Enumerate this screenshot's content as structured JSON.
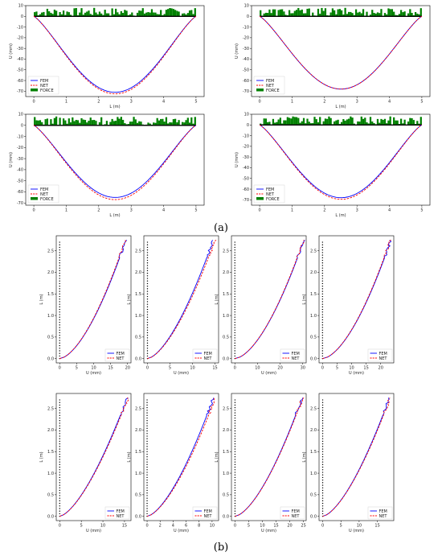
{
  "panel_labels": [
    "(a)",
    "(b)"
  ],
  "colors": {
    "fem": "#0000ff",
    "net": "#ff0000",
    "force": "#008000",
    "support": "#000000"
  },
  "chart_data": [
    {
      "type": "line",
      "group": "a",
      "xlabel": "L (m)",
      "ylabel": "U (mm)",
      "xlim": [
        -0.25,
        5.25
      ],
      "ylim": [
        -75,
        10
      ],
      "xticks": [
        0,
        1,
        2,
        3,
        4,
        5
      ],
      "yticks": [
        10,
        0,
        -10,
        -20,
        -30,
        -40,
        -50,
        -60,
        -70
      ],
      "legend": [
        "FEM",
        "NET",
        "FORCE"
      ],
      "legend_position": "lower-left",
      "fem_min": -71,
      "net_min": -72.5,
      "force_range": [
        0,
        8
      ]
    },
    {
      "type": "line",
      "group": "a",
      "xlabel": "L (m)",
      "ylabel": "U (mm)",
      "xlim": [
        -0.25,
        5.25
      ],
      "ylim": [
        -75,
        10
      ],
      "xticks": [
        0,
        1,
        2,
        3,
        4,
        5
      ],
      "yticks": [
        10,
        0,
        -10,
        -20,
        -30,
        -40,
        -50,
        -60,
        -70
      ],
      "legend": [
        "FEM",
        "NET",
        "FORCE"
      ],
      "legend_position": "lower-left",
      "fem_min": -68,
      "net_min": -68,
      "force_range": [
        0,
        8
      ]
    },
    {
      "type": "line",
      "group": "a",
      "xlabel": "L (m)",
      "ylabel": "U (mm)",
      "xlim": [
        -0.25,
        5.25
      ],
      "ylim": [
        -72,
        10
      ],
      "xticks": [
        0,
        1,
        2,
        3,
        4,
        5
      ],
      "yticks": [
        10,
        0,
        -10,
        -20,
        -30,
        -40,
        -50,
        -60,
        -70
      ],
      "legend": [
        "FEM",
        "NET",
        "FORCE"
      ],
      "legend_position": "lower-left",
      "fem_min": -65,
      "net_min": -67,
      "force_range": [
        0,
        8
      ]
    },
    {
      "type": "line",
      "group": "a",
      "xlabel": "L (m)",
      "ylabel": "U (mm)",
      "xlim": [
        -0.25,
        5.25
      ],
      "ylim": [
        -75,
        10
      ],
      "xticks": [
        0,
        1,
        2,
        3,
        4,
        5
      ],
      "yticks": [
        10,
        0,
        -10,
        -20,
        -30,
        -40,
        -50,
        -60,
        -70
      ],
      "legend": [
        "FEM",
        "NET",
        "FORCE"
      ],
      "legend_position": "lower-left",
      "fem_min": -68,
      "net_min": -69.5,
      "force_range": [
        0,
        8
      ]
    },
    {
      "type": "line",
      "group": "b",
      "xlabel": "U (mm)",
      "ylabel": "L (m)",
      "xlim": [
        -1,
        21
      ],
      "ylim": [
        -0.1,
        2.85
      ],
      "xticks": [
        0,
        5,
        10,
        15,
        20
      ],
      "yticks": [
        0.0,
        0.5,
        1.0,
        1.5,
        2.0,
        2.5
      ],
      "legend": [
        "FEM",
        "NET"
      ],
      "legend_position": "lower-right",
      "tip_fem": 19.5,
      "tip_net": 19.3,
      "curve_shape": 0.55
    },
    {
      "type": "line",
      "group": "b",
      "xlabel": "U (mm)",
      "ylabel": "L (m)",
      "xlim": [
        -0.8,
        15.8
      ],
      "ylim": [
        -0.1,
        2.85
      ],
      "xticks": [
        0,
        5,
        10,
        15
      ],
      "yticks": [
        0.0,
        0.5,
        1.0,
        1.5,
        2.0,
        2.5
      ],
      "legend": [
        "FEM",
        "NET"
      ],
      "legend_position": "lower-right",
      "tip_fem": 14.6,
      "tip_net": 15.0,
      "curve_shape": 0.45
    },
    {
      "type": "line",
      "group": "b",
      "xlabel": "U (mm)",
      "ylabel": "L (m)",
      "xlim": [
        -1.5,
        31.5
      ],
      "ylim": [
        -0.1,
        2.85
      ],
      "xticks": [
        0,
        10,
        20,
        30
      ],
      "yticks": [
        0.0,
        0.5,
        1.0,
        1.5,
        2.0,
        2.5
      ],
      "legend": [
        "FEM",
        "NET"
      ],
      "legend_position": "lower-right",
      "tip_fem": 30.5,
      "tip_net": 30.3,
      "curve_shape": 0.6
    },
    {
      "type": "line",
      "group": "b",
      "xlabel": "U (mm)",
      "ylabel": "L (m)",
      "xlim": [
        -1.2,
        24.5
      ],
      "ylim": [
        -0.1,
        2.85
      ],
      "xticks": [
        0,
        5,
        10,
        15,
        20
      ],
      "yticks": [
        0.0,
        0.5,
        1.0,
        1.5,
        2.0,
        2.5
      ],
      "legend": [
        "FEM",
        "NET"
      ],
      "legend_position": "lower-right",
      "tip_fem": 23.5,
      "tip_net": 23.3,
      "curve_shape": 0.6
    },
    {
      "type": "line",
      "group": "b",
      "xlabel": "U (mm)",
      "ylabel": "L (m)",
      "xlim": [
        -0.8,
        16.5
      ],
      "ylim": [
        -0.1,
        2.85
      ],
      "xticks": [
        0,
        5,
        10,
        15
      ],
      "yticks": [
        0.0,
        0.5,
        1.0,
        1.5,
        2.0,
        2.5
      ],
      "legend": [
        "FEM",
        "NET"
      ],
      "legend_position": "lower-right",
      "tip_fem": 15.6,
      "tip_net": 15.8,
      "curve_shape": 0.35
    },
    {
      "type": "line",
      "group": "b",
      "xlabel": "U (mm)",
      "ylabel": "L (m)",
      "xlim": [
        -0.5,
        11
      ],
      "ylim": [
        -0.1,
        2.85
      ],
      "xticks": [
        0,
        2,
        4,
        6,
        8,
        10
      ],
      "yticks": [
        0.0,
        0.5,
        1.0,
        1.5,
        2.0,
        2.5
      ],
      "legend": [
        "FEM",
        "NET"
      ],
      "legend_position": "lower-right",
      "tip_fem": 10.2,
      "tip_net": 10.5,
      "curve_shape": 0.4
    },
    {
      "type": "line",
      "group": "b",
      "xlabel": "U (mm)",
      "ylabel": "L (m)",
      "xlim": [
        -1.3,
        26
      ],
      "ylim": [
        -0.1,
        2.85
      ],
      "xticks": [
        0,
        5,
        10,
        15,
        20,
        25
      ],
      "yticks": [
        0.0,
        0.5,
        1.0,
        1.5,
        2.0,
        2.5
      ],
      "legend": [
        "FEM",
        "NET"
      ],
      "legend_position": "lower-right",
      "tip_fem": 24.5,
      "tip_net": 24.7,
      "curve_shape": 0.45
    },
    {
      "type": "line",
      "group": "b",
      "xlabel": "U (mm)",
      "ylabel": "L (m)",
      "xlim": [
        -1,
        19.5
      ],
      "ylim": [
        -0.1,
        2.85
      ],
      "xticks": [
        0,
        5,
        10,
        15
      ],
      "yticks": [
        0.0,
        0.5,
        1.0,
        1.5,
        2.0,
        2.5
      ],
      "legend": [
        "FEM",
        "NET"
      ],
      "legend_position": "lower-right",
      "tip_fem": 18.3,
      "tip_net": 18.5,
      "curve_shape": 0.4
    }
  ]
}
